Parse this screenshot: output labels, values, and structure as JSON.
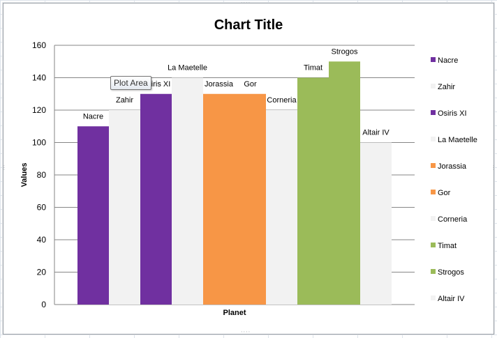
{
  "chart_data": {
    "type": "bar",
    "title": "Chart Title",
    "xlabel": "Planet",
    "ylabel": "Values",
    "ylim": [
      0,
      160
    ],
    "yticks": [
      0,
      20,
      40,
      60,
      80,
      100,
      120,
      140,
      160
    ],
    "grid": true,
    "legend_position": "right",
    "categories": [
      "Nacre",
      "Zahir",
      "Osiris XI",
      "La Maetelle",
      "Jorassia",
      "Gor",
      "Corneria",
      "Timat",
      "Strogos",
      "Altair IV"
    ],
    "values": [
      110,
      120,
      130,
      140,
      130,
      130,
      120,
      140,
      150,
      100
    ],
    "data_labels": [
      "Nacre",
      "Zahir",
      "Osiris XI",
      "La Maetelle",
      "Jorassia",
      "Gor",
      "Corneria",
      "Timat",
      "Strogos",
      "Altair IV"
    ],
    "colors": [
      "#7030a0",
      "#f2f2f2",
      "#7030a0",
      "#f2f2f2",
      "#f79646",
      "#f79646",
      "#f2f2f2",
      "#9bbb59",
      "#9bbb59",
      "#f2f2f2"
    ]
  },
  "tooltip": {
    "text": "Plot Area"
  }
}
